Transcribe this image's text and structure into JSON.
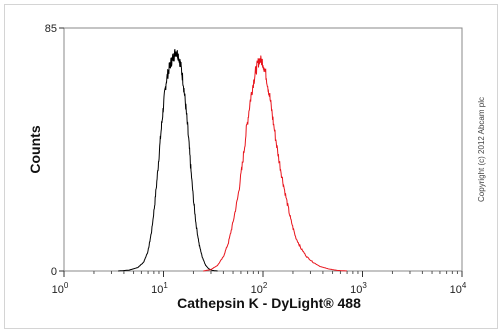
{
  "chart_data": {
    "type": "line",
    "xlabel": "Cathepsin K - DyLight® 488",
    "ylabel": "Counts",
    "x_scale": "log",
    "xlim": [
      1,
      10000
    ],
    "ylim": [
      0,
      85
    ],
    "y_ticks": [
      "0",
      "85"
    ],
    "x_ticks": [
      {
        "base": "10",
        "exp": "0",
        "value": 1
      },
      {
        "base": "10",
        "exp": "1",
        "value": 10
      },
      {
        "base": "10",
        "exp": "2",
        "value": 100
      },
      {
        "base": "10",
        "exp": "3",
        "value": 1000
      },
      {
        "base": "10",
        "exp": "4",
        "value": 10000
      }
    ],
    "grid": false,
    "annotation": "Copyright (c) 2012 Abcam plc",
    "series": [
      {
        "color": "#000000",
        "x": [
          3.5,
          4.5,
          5.5,
          6.3,
          7.0,
          7.6,
          8.2,
          8.8,
          9.4,
          10.0,
          10.6,
          11.2,
          11.9,
          12.6,
          13.3,
          14.1,
          14.9,
          15.8,
          16.7,
          17.8,
          18.8,
          20.0,
          21.3,
          22.9,
          24.5,
          26.5,
          28.5,
          31.0,
          35.0
        ],
        "y": [
          0,
          0.3,
          1.2,
          3.0,
          7.0,
          14.0,
          24.0,
          36.0,
          48.0,
          58.0,
          66.0,
          70.0,
          73.0,
          75.0,
          77.0,
          75.5,
          72.0,
          66.0,
          58.0,
          47.0,
          36.0,
          25.0,
          16.0,
          9.0,
          5.0,
          2.0,
          0.8,
          0.2,
          0
        ]
      },
      {
        "color": "#e8141c",
        "x": [
          25,
          30,
          35,
          40,
          45,
          50,
          56,
          62,
          68,
          74,
          80,
          86,
          92,
          100,
          108,
          117,
          127,
          140,
          155,
          172,
          190,
          212,
          240,
          275,
          320,
          380,
          460,
          560,
          700
        ],
        "y": [
          0,
          0.5,
          2.0,
          5.0,
          10.0,
          17.0,
          26.0,
          37.0,
          49.0,
          59.0,
          66.0,
          71.0,
          74.0,
          73.0,
          68.0,
          61.0,
          52.0,
          42.0,
          33.0,
          25.0,
          18.0,
          12.0,
          8.0,
          5.0,
          3.0,
          1.5,
          0.7,
          0.2,
          0
        ]
      }
    ]
  }
}
